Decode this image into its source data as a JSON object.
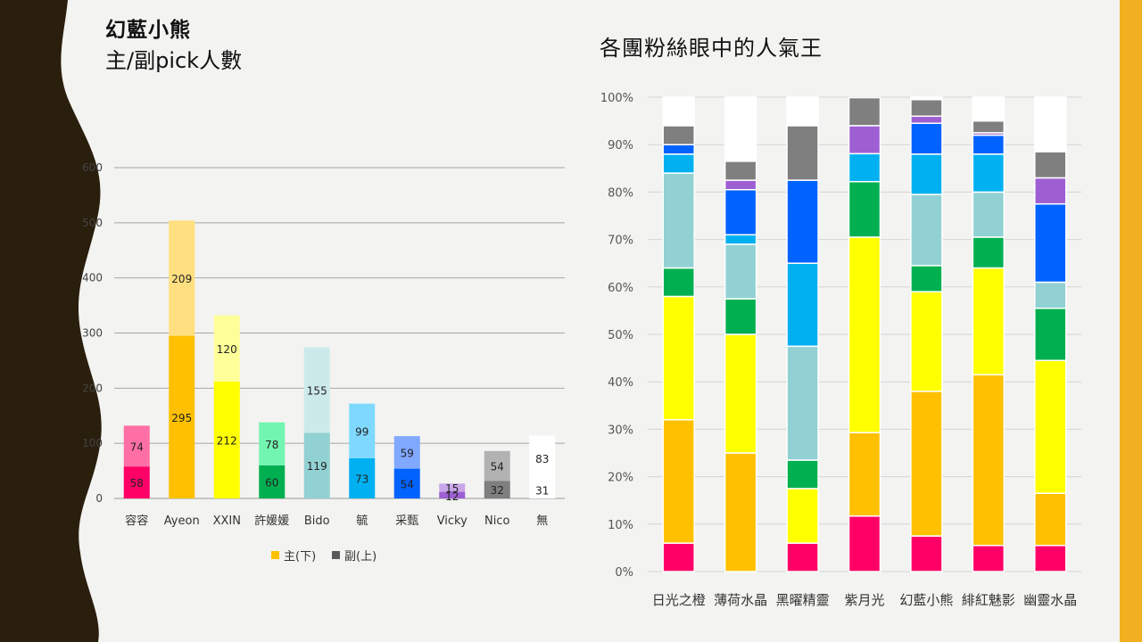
{
  "slide": {
    "title_main": "幻藍小熊",
    "title_sub": "主/副pick人數",
    "title_right": "各團粉絲眼中的人氣王"
  },
  "colors": {
    "left_band": "#2a1e0d",
    "right_band": "#f2b020",
    "background": "#f3f3f1"
  },
  "chart_data": [
    {
      "type": "bar",
      "stacked": true,
      "categories": [
        "容容",
        "Ayeon",
        "XXIN",
        "許媛媛",
        "Bido",
        "毓",
        "采甄",
        "Vicky",
        "Nico",
        "無"
      ],
      "series": [
        {
          "name": "主(下)",
          "values": [
            58,
            295,
            212,
            60,
            119,
            73,
            54,
            12,
            32,
            31
          ]
        },
        {
          "name": "副(上)",
          "values": [
            74,
            209,
            120,
            78,
            155,
            99,
            59,
            15,
            54,
            83
          ]
        }
      ],
      "main_colors": [
        "#ff0066",
        "#ffc000",
        "#ffff00",
        "#00b050",
        "#92d1d3",
        "#00b0f0",
        "#0063ff",
        "#9e5fd3",
        "#7f7f7f",
        "#ffffff"
      ],
      "secondary_colors": [
        "#ff6fa5",
        "#ffdf80",
        "#ffff99",
        "#72f5b0",
        "#cdeaeb",
        "#7fd9ff",
        "#80a8ff",
        "#c9a6ea",
        "#b2b2b2",
        "#ffffff"
      ],
      "legend_swatch_colors": [
        "#ffc000",
        "#595959"
      ],
      "ylim": [
        0,
        600
      ],
      "yticks": [
        "0",
        "100",
        "200",
        "300",
        "400",
        "500",
        "600"
      ],
      "legend_position": "bottom",
      "grid": true
    },
    {
      "type": "bar",
      "stacked": true,
      "percent": true,
      "categories": [
        "日光之橙",
        "薄荷水晶",
        "黑曜精靈",
        "紫月光",
        "幻藍小熊",
        "緋紅魅影",
        "幽靈水晶"
      ],
      "segment_colors": [
        "#ff0066",
        "#ffc000",
        "#ffff00",
        "#00b050",
        "#92d1d3",
        "#00b0f0",
        "#0063ff",
        "#9e5fd3",
        "#7f7f7f",
        "#ffffff"
      ],
      "segments_percent": [
        [
          6,
          26,
          26,
          6,
          20,
          4,
          2,
          0,
          4,
          6
        ],
        [
          0,
          25,
          25,
          7.5,
          11.5,
          2,
          9.5,
          2,
          4,
          13.5
        ],
        [
          6,
          0,
          11.5,
          6,
          24,
          17.5,
          17.5,
          0,
          11.5,
          6
        ],
        [
          11.7,
          17.6,
          41.2,
          11.7,
          0,
          5.9,
          0,
          5.9,
          5.9,
          0
        ],
        [
          7.5,
          30.5,
          21,
          5.5,
          15,
          8.5,
          6.5,
          1.5,
          3.5,
          0.5
        ],
        [
          5.5,
          36,
          22.5,
          6.5,
          9.5,
          8,
          4,
          0.5,
          2.5,
          5
        ],
        [
          5.5,
          11,
          28,
          11,
          5.5,
          0,
          16.5,
          5.5,
          5.5,
          11.5
        ]
      ],
      "ylim": [
        0,
        100
      ],
      "yticks": [
        "0%",
        "10%",
        "20%",
        "30%",
        "40%",
        "50%",
        "60%",
        "70%",
        "80%",
        "90%",
        "100%"
      ],
      "grid": true
    }
  ]
}
